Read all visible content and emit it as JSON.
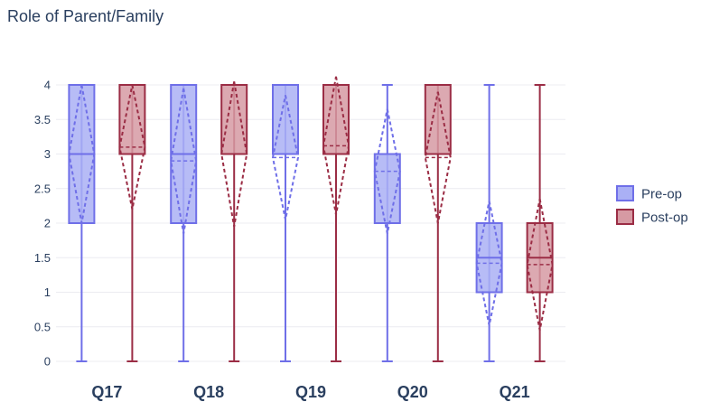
{
  "chart_data": {
    "type": "box",
    "title": "Role of Parent/Family",
    "xlabel": "",
    "ylabel": "",
    "categories": [
      "Q17",
      "Q18",
      "Q19",
      "Q20",
      "Q21"
    ],
    "ylim": [
      0,
      4
    ],
    "yticks": [
      "0",
      "0.5",
      "1",
      "1.5",
      "2",
      "2.5",
      "3",
      "3.5",
      "4"
    ],
    "grid": true,
    "legend_position": "right",
    "boxmean": "sd",
    "series": [
      {
        "name": "Pre-op",
        "color": "#6f6fe8",
        "fill": "#aab0f5",
        "boxes": [
          {
            "min": 0,
            "q1": 2,
            "median": 3,
            "q3": 4,
            "max": 4,
            "mean": 3.0,
            "sd": 1.0
          },
          {
            "min": 0,
            "q1": 2,
            "median": 3,
            "q3": 4,
            "max": 4,
            "mean": 2.9,
            "sd": 1.05
          },
          {
            "min": 0,
            "q1": 3,
            "median": 3,
            "q3": 4,
            "max": 4,
            "mean": 2.95,
            "sd": 0.9
          },
          {
            "min": 0,
            "q1": 2,
            "median": 3,
            "q3": 3,
            "max": 4,
            "mean": 2.75,
            "sd": 0.9
          },
          {
            "min": 0,
            "q1": 1,
            "median": 1.5,
            "q3": 2,
            "max": 4,
            "mean": 1.42,
            "sd": 0.9
          }
        ]
      },
      {
        "name": "Post-op",
        "color": "#9b2d45",
        "fill": "#d69aa3",
        "boxes": [
          {
            "min": 0,
            "q1": 3,
            "median": 3,
            "q3": 4,
            "max": 4,
            "mean": 3.1,
            "sd": 0.9
          },
          {
            "min": 0,
            "q1": 3,
            "median": 3,
            "q3": 4,
            "max": 4,
            "mean": 3.0,
            "sd": 1.05
          },
          {
            "min": 0,
            "q1": 3,
            "median": 3,
            "q3": 4,
            "max": 4,
            "mean": 3.12,
            "sd": 1.0
          },
          {
            "min": 0,
            "q1": 3,
            "median": 3,
            "q3": 4,
            "max": 4,
            "mean": 2.95,
            "sd": 0.95
          },
          {
            "min": 0,
            "q1": 1,
            "median": 1.5,
            "q3": 2,
            "max": 4,
            "mean": 1.4,
            "sd": 0.95
          }
        ]
      }
    ]
  }
}
